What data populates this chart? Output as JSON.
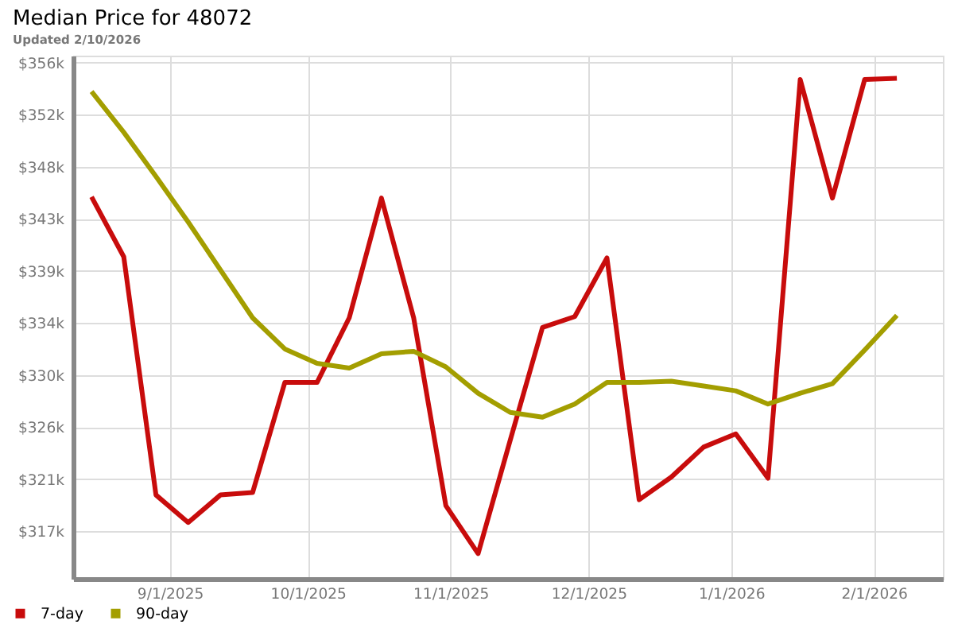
{
  "chart_data": {
    "type": "line",
    "title": "Median Price for 48072",
    "subtitle": "Updated 2/10/2026",
    "x": [
      "2025-08-15",
      "2025-08-22",
      "2025-08-29",
      "2025-09-05",
      "2025-09-12",
      "2025-09-19",
      "2025-09-26",
      "2025-10-03",
      "2025-10-10",
      "2025-10-17",
      "2025-10-24",
      "2025-10-31",
      "2025-11-07",
      "2025-11-14",
      "2025-11-21",
      "2025-11-28",
      "2025-12-05",
      "2025-12-12",
      "2025-12-19",
      "2025-12-26",
      "2026-01-02",
      "2026-01-09",
      "2026-01-16",
      "2026-01-23",
      "2026-01-30",
      "2026-02-06"
    ],
    "series": [
      {
        "name": "7-day",
        "color": "#c80c0c",
        "values": [
          345000,
          340000,
          320100,
          317800,
          320100,
          320300,
          329500,
          329500,
          334900,
          344900,
          334900,
          319200,
          315200,
          324700,
          334100,
          335000,
          339900,
          319700,
          321600,
          324100,
          325200,
          321500,
          354800,
          344900,
          354800,
          354900
        ]
      },
      {
        "name": "90-day",
        "color": "#a39e00",
        "values": [
          353800,
          350400,
          346700,
          342900,
          338900,
          334900,
          332300,
          331100,
          330700,
          331900,
          332100,
          330800,
          328600,
          327000,
          326600,
          327700,
          329500,
          329500,
          329600,
          329200,
          328800,
          327700,
          328600,
          329400,
          332200,
          335100
        ]
      }
    ],
    "xlim": [
      "2025-08-11",
      "2026-02-16"
    ],
    "xticks": [
      {
        "value": "2025-09-01",
        "label": "9/1/2025"
      },
      {
        "value": "2025-10-01",
        "label": "10/1/2025"
      },
      {
        "value": "2025-11-01",
        "label": "11/1/2025"
      },
      {
        "value": "2025-12-01",
        "label": "12/1/2025"
      },
      {
        "value": "2026-01-01",
        "label": "1/1/2026"
      },
      {
        "value": "2026-02-01",
        "label": "2/1/2026"
      }
    ],
    "ylim": [
      313100,
      356800
    ],
    "yticks": [
      {
        "value": 317070,
        "label": "$317k"
      },
      {
        "value": 321420,
        "label": "$321k"
      },
      {
        "value": 325770,
        "label": "$326k"
      },
      {
        "value": 330120,
        "label": "$330k"
      },
      {
        "value": 334470,
        "label": "$334k"
      },
      {
        "value": 338820,
        "label": "$339k"
      },
      {
        "value": 343170,
        "label": "$343k"
      },
      {
        "value": 347520,
        "label": "$348k"
      },
      {
        "value": 351870,
        "label": "$352k"
      },
      {
        "value": 356220,
        "label": "$356k"
      }
    ],
    "grid": true,
    "legend": "bottom left",
    "line_style": "solid"
  }
}
